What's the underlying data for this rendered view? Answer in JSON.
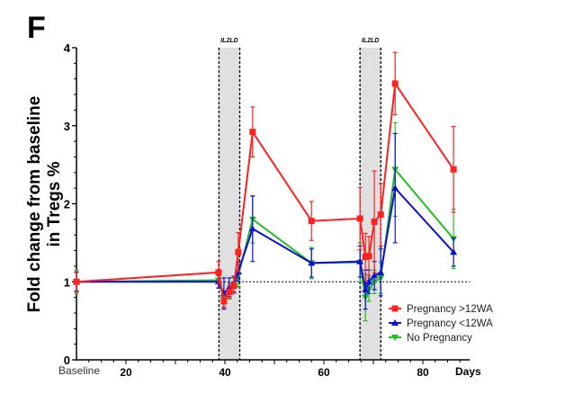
{
  "panel_label": "F",
  "chart_data": {
    "type": "line",
    "title": "",
    "xlabel": "Days",
    "ylabel_lines": [
      "Fold change from baseline",
      "in Tregs %"
    ],
    "baseline_label": "Baseline",
    "xlim": [
      10,
      89.5
    ],
    "ylim": [
      0,
      4
    ],
    "xticks": [
      20,
      40,
      60,
      80
    ],
    "yticks": [
      0,
      1,
      2,
      3,
      4
    ],
    "reference_line": 1,
    "shaded_regions": [
      {
        "label": "IL2LD",
        "start": 38.8,
        "end": 43.0
      },
      {
        "label": "IL2LD",
        "start": 67.3,
        "end": 71.5
      }
    ],
    "x": [
      10,
      38.7,
      39.8,
      40.9,
      41.8,
      42.7,
      45.6,
      57.5,
      67.3,
      68.4,
      69.1,
      70.2,
      71.5,
      74.4,
      86.2
    ],
    "series": [
      {
        "name": "Pregnancy >12WA",
        "color": "#ff2020",
        "marker": "square",
        "values": [
          1.0,
          1.12,
          0.75,
          0.87,
          0.95,
          1.38,
          2.92,
          1.78,
          1.81,
          1.32,
          1.33,
          1.77,
          1.86,
          3.54,
          2.44
        ],
        "errors": [
          0.13,
          0.14,
          0.08,
          0.08,
          0.1,
          0.25,
          0.32,
          0.25,
          0.4,
          0.3,
          0.25,
          0.65,
          0.4,
          0.4,
          0.55
        ]
      },
      {
        "name": "Pregnancy <12WA",
        "color": "#1010d0",
        "marker": "triangle",
        "values": [
          1.0,
          1.0,
          0.85,
          0.93,
          0.97,
          1.13,
          1.68,
          1.24,
          1.26,
          0.9,
          1.0,
          1.08,
          1.12,
          2.2,
          1.38
        ],
        "errors": [
          0.12,
          0.08,
          0.2,
          0.12,
          0.1,
          0.12,
          0.42,
          0.18,
          0.2,
          0.25,
          0.15,
          0.18,
          0.3,
          0.7,
          0.18
        ]
      },
      {
        "name": "No Pregnancy",
        "color": "#20c020",
        "marker": "triangle-down",
        "values": [
          1.0,
          1.02,
          0.78,
          0.88,
          0.95,
          1.08,
          1.8,
          1.24,
          1.25,
          0.8,
          0.9,
          1.0,
          1.05,
          2.44,
          1.55
        ],
        "errors": [
          0.15,
          0.1,
          0.1,
          0.1,
          0.1,
          0.15,
          0.3,
          0.2,
          0.25,
          0.3,
          0.15,
          0.15,
          0.2,
          0.6,
          0.38
        ]
      }
    ],
    "legend_position": "bottom-right",
    "grid": false
  }
}
